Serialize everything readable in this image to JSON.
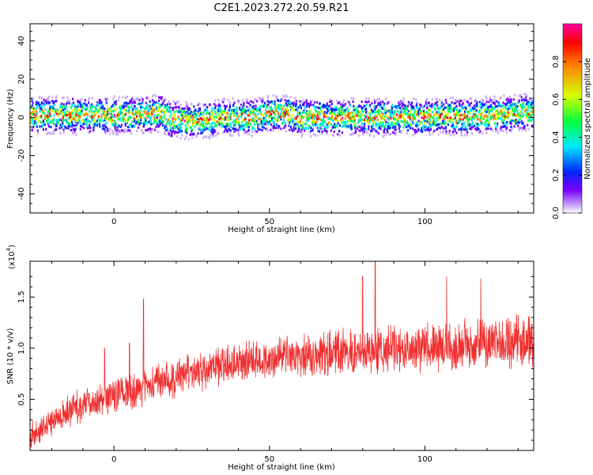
{
  "title": "C2E1.2023.272.20.59.R21",
  "chart_data": [
    {
      "type": "heatmap",
      "xlabel": "Height of straight line (km)",
      "ylabel": "Frequency (Hz)",
      "xlim": [
        -27,
        135
      ],
      "ylim": [
        -50,
        49
      ],
      "xticks": [
        0,
        50,
        100
      ],
      "yticks": [
        -40,
        -20,
        0,
        20,
        40
      ],
      "ridge_center_hz": [
        [
          -27,
          1
        ],
        [
          -10,
          1
        ],
        [
          5,
          1
        ],
        [
          15,
          2
        ],
        [
          18,
          -1
        ],
        [
          25,
          -2
        ],
        [
          35,
          0
        ],
        [
          45,
          0
        ],
        [
          48,
          2
        ],
        [
          55,
          2
        ],
        [
          60,
          0
        ],
        [
          70,
          0
        ],
        [
          80,
          0
        ],
        [
          90,
          0
        ],
        [
          100,
          0
        ],
        [
          105,
          1
        ],
        [
          110,
          0
        ],
        [
          120,
          1
        ],
        [
          128,
          2
        ],
        [
          135,
          3
        ]
      ],
      "ridge_halfwidth_hz": 6,
      "grid": false,
      "colorbar": {
        "label": "Normalized spectral amplitude",
        "range": [
          0.0,
          1.0
        ],
        "ticks": [
          0.0,
          0.2,
          0.4,
          0.6,
          0.8
        ],
        "colors": [
          "#ffffff",
          "#c8a8f8",
          "#7a00ff",
          "#0028ff",
          "#00e8ff",
          "#00ff40",
          "#d8ff00",
          "#ff8000",
          "#ff0000",
          "#ff00a0"
        ]
      }
    },
    {
      "type": "line",
      "xlabel": "Height of straight line (km)",
      "ylabel": "SNR (10 * v/v)",
      "multiplier_label": "(x10",
      "multiplier_exp": "4",
      "xlim": [
        -27,
        135
      ],
      "ylim": [
        0.0,
        1.85
      ],
      "xticks": [
        0,
        50,
        100
      ],
      "yticks": [
        0.5,
        1.0,
        1.5
      ],
      "ytick_labels": [
        "0.5",
        "1.0",
        "1.5"
      ],
      "color": "#f03030",
      "trend": [
        [
          -27,
          0.1
        ],
        [
          -20,
          0.3
        ],
        [
          -10,
          0.45
        ],
        [
          0,
          0.55
        ],
        [
          10,
          0.62
        ],
        [
          20,
          0.72
        ],
        [
          30,
          0.8
        ],
        [
          40,
          0.86
        ],
        [
          50,
          0.9
        ],
        [
          60,
          0.93
        ],
        [
          70,
          0.95
        ],
        [
          80,
          0.97
        ],
        [
          90,
          1.0
        ],
        [
          100,
          1.02
        ],
        [
          110,
          1.03
        ],
        [
          120,
          1.05
        ],
        [
          135,
          1.07
        ]
      ],
      "spikes": [
        [
          9.5,
          1.48
        ],
        [
          84,
          1.87
        ],
        [
          80,
          1.7
        ],
        [
          107,
          1.7
        ],
        [
          118,
          1.68
        ],
        [
          -3,
          1.0
        ],
        [
          5,
          1.05
        ]
      ],
      "grid": false
    }
  ]
}
